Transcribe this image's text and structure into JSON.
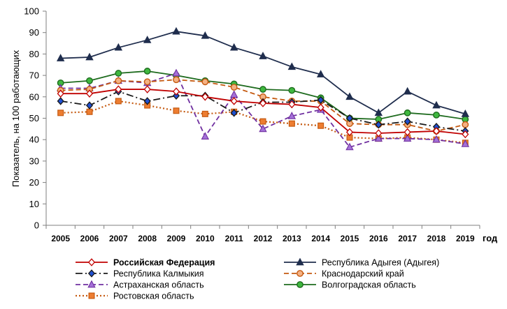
{
  "chart_data": {
    "type": "line",
    "ylabel": "Показатель, на 100 работающих",
    "xlabel": "год",
    "ylim": [
      0,
      100
    ],
    "yticks": [
      0,
      10,
      20,
      30,
      40,
      50,
      60,
      70,
      80,
      90,
      100
    ],
    "grid": false,
    "legend_position": "bottom",
    "x": [
      "2005",
      "2006",
      "2007",
      "2008",
      "2009",
      "2010",
      "2011",
      "2012",
      "2013",
      "2014",
      "2015",
      "2016",
      "2017",
      "2018",
      "2019"
    ],
    "series": [
      {
        "name": "Российская Федерация",
        "color": "#c00000",
        "line_style": "solid",
        "marker": "diamond",
        "marker_fill": "#ffffff",
        "bold_label": true,
        "values": [
          61.5,
          61.5,
          63.5,
          63.5,
          62.5,
          60.0,
          58.0,
          57.0,
          56.5,
          55.0,
          43.5,
          43.0,
          43.5,
          44.0,
          42.5
        ]
      },
      {
        "name": "Республика Адыгея (Адыгея)",
        "color": "#1f2d4d",
        "line_style": "solid",
        "marker": "triangle",
        "marker_fill": "#1f2d4d",
        "values": [
          78.0,
          78.5,
          83.0,
          86.5,
          90.5,
          88.5,
          83.0,
          79.0,
          74.0,
          70.5,
          60.0,
          52.5,
          62.5,
          56.0,
          52.0
        ]
      },
      {
        "name": "Республика Калмыкия",
        "color": "#1a1a1a",
        "line_style": "dashdot",
        "marker": "diamond",
        "marker_fill": "#1f4fd1",
        "values": [
          58.0,
          56.0,
          62.5,
          58.0,
          60.5,
          60.5,
          52.5,
          57.5,
          57.5,
          58.5,
          50.0,
          47.0,
          48.5,
          46.0,
          44.0
        ]
      },
      {
        "name": "Краснодарский край",
        "color": "#c55a11",
        "line_style": "dashed",
        "marker": "circle",
        "marker_fill": "#f4b183",
        "values": [
          63.0,
          63.5,
          67.5,
          67.0,
          68.0,
          67.0,
          64.5,
          60.0,
          58.0,
          58.0,
          47.5,
          47.0,
          47.0,
          44.0,
          47.0
        ]
      },
      {
        "name": "Астраханская область",
        "color": "#7030a0",
        "line_style": "dashed",
        "marker": "triangle",
        "marker_fill": "#a470d8",
        "values": [
          64.0,
          64.0,
          67.5,
          66.5,
          71.0,
          41.5,
          61.0,
          45.0,
          51.0,
          54.0,
          36.5,
          40.5,
          40.5,
          40.0,
          38.0
        ]
      },
      {
        "name": "Волгоградская область",
        "color": "#1e6b1e",
        "line_style": "solid",
        "marker": "circle",
        "marker_fill": "#3fb83f",
        "values": [
          66.5,
          67.5,
          71.0,
          72.0,
          70.0,
          67.5,
          66.0,
          63.5,
          63.0,
          59.5,
          50.0,
          49.5,
          52.5,
          51.5,
          49.5
        ]
      },
      {
        "name": "Ростовская область",
        "color": "#c55a11",
        "line_style": "dotted",
        "marker": "square",
        "marker_fill": "#ed7d31",
        "values": [
          52.5,
          53.0,
          58.0,
          56.0,
          53.5,
          52.0,
          53.0,
          48.5,
          47.5,
          46.5,
          41.0,
          40.5,
          41.0,
          40.0,
          38.5
        ]
      }
    ],
    "legend_order": [
      0,
      1,
      2,
      3,
      4,
      5,
      6
    ]
  }
}
